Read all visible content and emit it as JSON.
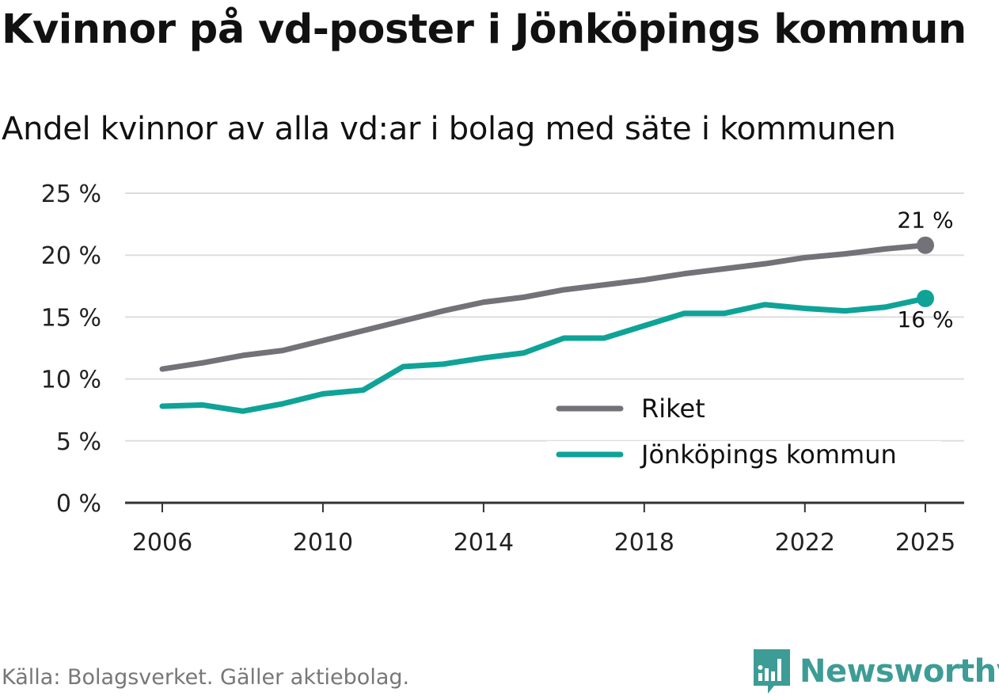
{
  "header": {
    "title": "Kvinnor på vd-poster i Jönköpings kommun",
    "subtitle": "Andel kvinnor av alla vd:ar i bolag med säte i kommunen"
  },
  "footer": {
    "source": "Källa: Bolagsverket. Gäller aktiebolag.",
    "brand": "Newsworthy"
  },
  "colors": {
    "riket": "#737278",
    "jonkoping": "#0fa398",
    "grid": "#dddddd",
    "axis": "#333333"
  },
  "chart_data": {
    "type": "line",
    "title": "Kvinnor på vd-poster i Jönköpings kommun",
    "subtitle": "Andel kvinnor av alla vd:ar i bolag med säte i kommunen",
    "xlabel": "",
    "ylabel": "",
    "x": [
      2006,
      2007,
      2008,
      2009,
      2010,
      2011,
      2012,
      2013,
      2014,
      2015,
      2016,
      2017,
      2018,
      2019,
      2020,
      2021,
      2022,
      2023,
      2024,
      2025
    ],
    "xlim": [
      2006,
      2025
    ],
    "ylim": [
      0,
      25
    ],
    "x_ticks": [
      2006,
      2010,
      2014,
      2018,
      2022,
      2025
    ],
    "x_tick_labels": [
      "2006",
      "2010",
      "2014",
      "2018",
      "2022",
      "2025"
    ],
    "y_ticks": [
      0,
      5,
      10,
      15,
      20,
      25
    ],
    "y_tick_labels": [
      "0 %",
      "5 %",
      "10 %",
      "15 %",
      "20 %",
      "25 %"
    ],
    "grid": true,
    "legend_position": "bottom-right",
    "series": [
      {
        "name": "Riket",
        "color": "#737278",
        "values": [
          10.8,
          11.3,
          11.9,
          12.3,
          13.1,
          13.9,
          14.7,
          15.5,
          16.2,
          16.6,
          17.2,
          17.6,
          18.0,
          18.5,
          18.9,
          19.3,
          19.8,
          20.1,
          20.5,
          20.8
        ],
        "end_label": "21 %"
      },
      {
        "name": "Jönköpings kommun",
        "color": "#0fa398",
        "values": [
          7.8,
          7.9,
          7.4,
          8.0,
          8.8,
          9.1,
          11.0,
          11.2,
          11.7,
          12.1,
          13.3,
          13.3,
          14.3,
          15.3,
          15.3,
          16.0,
          15.7,
          15.5,
          15.8,
          16.5
        ],
        "end_label": "16 %"
      }
    ]
  }
}
